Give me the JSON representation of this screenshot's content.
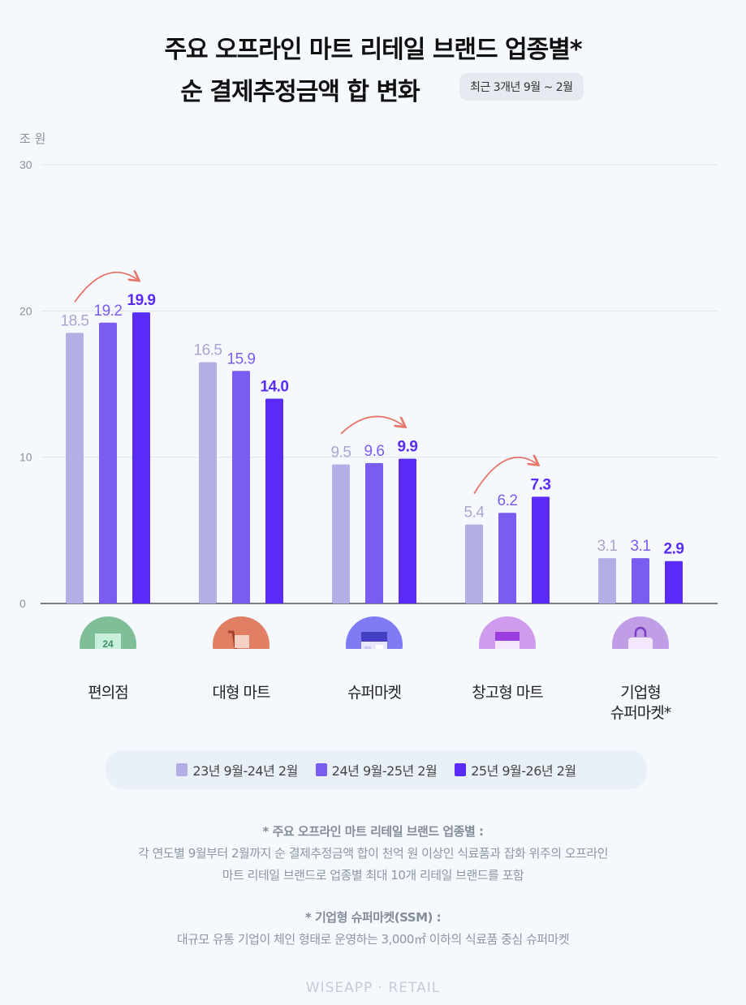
{
  "header": {
    "title_line1": "주요 오프라인 마트 리테일 브랜드 업종별*",
    "title_line2": "순 결제추정금액 합 변화",
    "period_badge": "최근 3개년 9월 ~ 2월"
  },
  "chart_data": {
    "type": "bar",
    "title": "주요 오프라인 마트 리테일 브랜드 업종별* 순 결제추정금액 합 변화",
    "ylabel": "조 원",
    "ylim": [
      0,
      30
    ],
    "yticks": [
      0,
      10,
      20,
      30
    ],
    "grid": true,
    "legend_position": "bottom",
    "categories": [
      "편의점",
      "대형 마트",
      "슈퍼마켓",
      "창고형 마트",
      "기업형 슈퍼마켓*"
    ],
    "category_icons": [
      "convenience-store-24-icon",
      "shopping-cart-icon",
      "storefront-icon",
      "warehouse-store-icon",
      "shopping-bag-icon"
    ],
    "category_icon_colors": [
      "#7fbf98",
      "#e07f63",
      "#7e7bf3",
      "#cf9bec",
      "#c09ee6"
    ],
    "series": [
      {
        "name": "23년 9월-24년 2월",
        "color": "#b3aee6",
        "values": [
          18.5,
          16.5,
          9.5,
          5.4,
          3.1
        ]
      },
      {
        "name": "24년 9월-25년 2월",
        "color": "#7a5cf0",
        "values": [
          19.2,
          15.9,
          9.6,
          6.2,
          3.1
        ]
      },
      {
        "name": "25년 9월-26년 2월",
        "color": "#5a2bf7",
        "values": [
          19.9,
          14.0,
          9.9,
          7.3,
          2.9
        ]
      }
    ],
    "growth_arrows_on": [
      "편의점",
      "슈퍼마켓",
      "창고형 마트"
    ],
    "arrow_color": "#e8756a"
  },
  "notes": {
    "note1_title": "* 주요 오프라인 마트 리테일 브랜드 업종별 :",
    "note1_line1": "각 연도별 9월부터 2월까지 순 결제추정금액 합이 천억 원 이상인 식료품과 잡화 위주의 오프라인",
    "note1_line2": "마트 리테일 브랜드로 업종별 최대 10개 리테일 브랜드를 포함",
    "note2_title": "* 기업형 슈퍼마켓(SSM) :",
    "note2_line1": "대규모 유통 기업이 체인 형태로 운영하는 3,000㎡ 이하의 식료품 중심 슈퍼마켓"
  },
  "footer": "WISEAPP · RETAIL"
}
